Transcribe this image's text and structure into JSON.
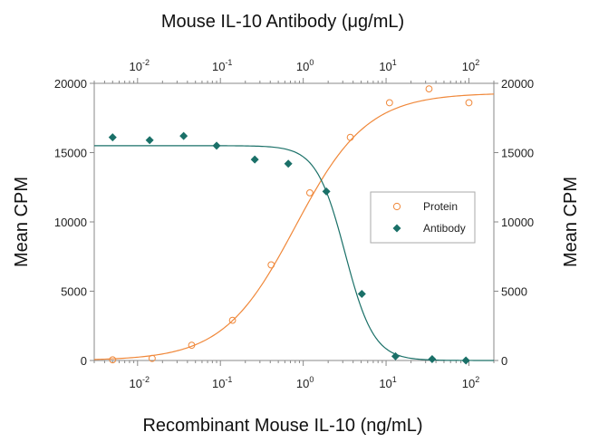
{
  "chart_data": {
    "type": "scatter",
    "title": "Mouse IL-10 Antibody (μg/mL)",
    "xlabel": "Recombinant Mouse IL-10 (ng/mL)",
    "ylabel": "Mean CPM",
    "ylabel_right": "Mean CPM",
    "xscale": "log",
    "xlim": [
      0.003,
      200
    ],
    "x2lim": [
      0.003,
      200
    ],
    "ylim": [
      0,
      20000
    ],
    "yticks": [
      0,
      5000,
      10000,
      15000,
      20000
    ],
    "ytick_labels": [
      "0",
      "5000",
      "10000",
      "15000",
      "20000"
    ],
    "xticks": [
      0.01,
      0.1,
      1,
      10,
      100
    ],
    "xtick_labels": [
      {
        "base": "10",
        "exp": "-2"
      },
      {
        "base": "10",
        "exp": "-1"
      },
      {
        "base": "10",
        "exp": "0"
      },
      {
        "base": "10",
        "exp": "1"
      },
      {
        "base": "10",
        "exp": "2"
      }
    ],
    "grid": false,
    "legend_position": "center-right",
    "series": [
      {
        "name": "Protein",
        "axis": "bottom",
        "marker": "open-circle",
        "color": "#f0883a",
        "x": [
          0.005,
          0.015,
          0.045,
          0.14,
          0.41,
          1.2,
          3.7,
          11,
          33,
          100
        ],
        "y": [
          50,
          150,
          1100,
          2900,
          6900,
          12100,
          16100,
          18600,
          19600,
          18600
        ],
        "fit": {
          "bottom": 0,
          "top": 19300,
          "ec50": 0.8,
          "hill": 1.0
        }
      },
      {
        "name": "Antibody",
        "axis": "top",
        "marker": "filled-diamond",
        "color": "#1a7068",
        "x": [
          0.005,
          0.014,
          0.036,
          0.09,
          0.26,
          0.66,
          1.9,
          5.1,
          13,
          36,
          92
        ],
        "y": [
          16100,
          15900,
          16200,
          15500,
          14500,
          14200,
          12200,
          4800,
          300,
          100,
          0
        ],
        "fit": {
          "bottom": 0,
          "top": 15500,
          "ec50": 3.2,
          "hill": 2.5
        }
      }
    ]
  }
}
